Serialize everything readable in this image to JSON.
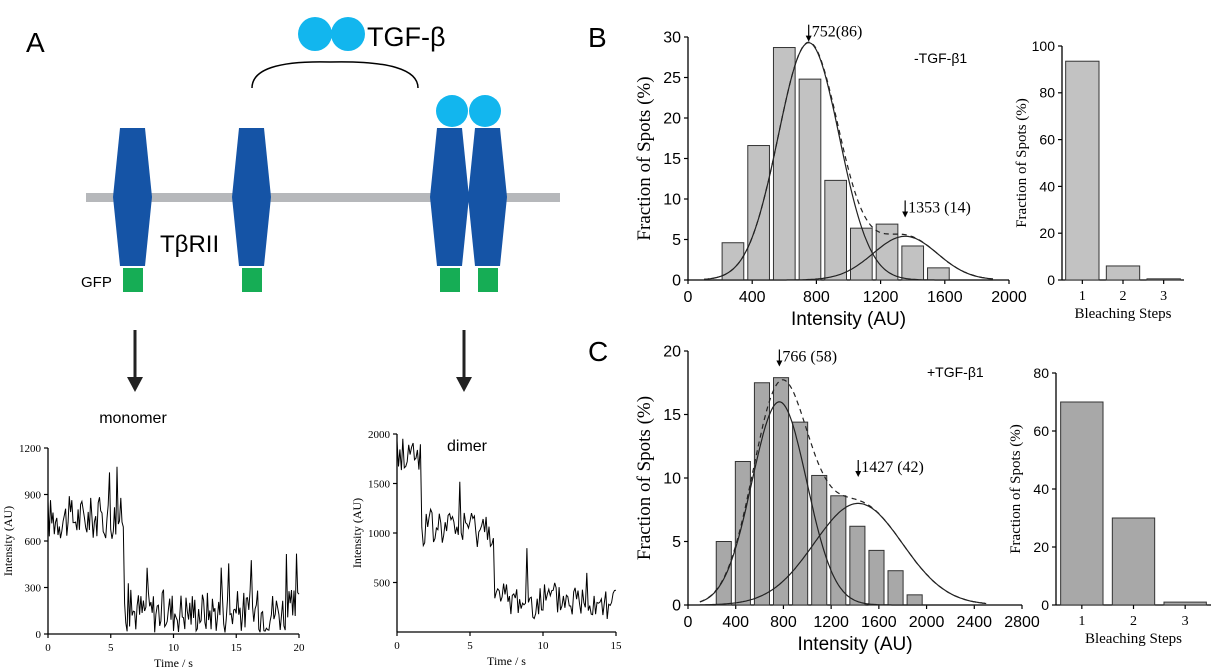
{
  "diagram": {
    "panel_label": "A",
    "ligand_label": "TGF-β",
    "receptor_label": "TβRII",
    "gfp_label": "GFP",
    "monomer_label": "monomer",
    "dimer_label": "dimer",
    "colors": {
      "ligand": "#12b6ee",
      "receptor": "#1554a6",
      "gfp": "#16ad55",
      "membrane": "#b6b8bb"
    }
  },
  "chart_data": [
    {
      "id": "trace_monomer",
      "type": "line",
      "xlabel": "Time / s",
      "ylabel": "Intensity (AU)",
      "xlim": [
        0,
        20
      ],
      "ylim": [
        0,
        1200
      ],
      "x_ticks": [
        0,
        5,
        10,
        15,
        20
      ],
      "y_ticks": [
        0,
        300,
        600,
        900,
        1200
      ],
      "step_time": 6,
      "levels": [
        [
          0,
          6,
          750
        ],
        [
          6,
          20,
          150
        ]
      ]
    },
    {
      "id": "trace_dimer",
      "type": "line",
      "xlabel": "Time / s",
      "ylabel": "Intensity (AU)",
      "xlim": [
        0,
        15
      ],
      "ylim": [
        0,
        2000
      ],
      "x_ticks": [
        0,
        5,
        10,
        15
      ],
      "y_ticks": [
        500,
        1000,
        1500,
        2000
      ],
      "levels": [
        [
          0,
          1.7,
          1800
        ],
        [
          1.7,
          6.6,
          1050
        ],
        [
          6.6,
          15,
          320
        ]
      ]
    },
    {
      "id": "hist_B",
      "panel_label": "B",
      "type": "bar",
      "condition_label": "-TGF-β1",
      "xlabel": "Intensity (AU)",
      "ylabel": "Fraction of Spots (%)",
      "xlim": [
        0,
        2000
      ],
      "ylim": [
        0,
        30
      ],
      "x_ticks": [
        0,
        400,
        800,
        1200,
        1600,
        2000
      ],
      "y_ticks": [
        0,
        5,
        10,
        15,
        20,
        25,
        30
      ],
      "bin_width": 160,
      "bin_centers": [
        280,
        440,
        600,
        760,
        920,
        1080,
        1240,
        1400,
        1560,
        1720
      ],
      "values": [
        4.6,
        16.6,
        28.7,
        24.8,
        12.3,
        6.4,
        6.9,
        4.2,
        1.5,
        0
      ],
      "gaussians": [
        {
          "mean": 752,
          "sigma": 190,
          "peak": 29.3
        },
        {
          "mean": 1353,
          "sigma": 200,
          "peak": 5.4
        }
      ],
      "annotations": [
        {
          "label": "752(86)",
          "x": 752,
          "y": 29.3
        },
        {
          "label": "1353 (14)",
          "x": 1353,
          "y": 7.6
        }
      ]
    },
    {
      "id": "steps_B",
      "type": "bar",
      "xlabel": "Bleaching Steps",
      "ylabel": "Fraction of Spots (%)",
      "ylim": [
        0,
        100
      ],
      "y_ticks": [
        0,
        20,
        40,
        60,
        80,
        100
      ],
      "categories": [
        "1",
        "2",
        "3"
      ],
      "values": [
        93.5,
        6,
        0.5
      ]
    },
    {
      "id": "hist_C",
      "panel_label": "C",
      "type": "bar",
      "condition_label": "+TGF-β1",
      "xlabel": "Intensity (AU)",
      "ylabel": "Fraction of Spots (%)",
      "xlim": [
        0,
        2800
      ],
      "ylim": [
        0,
        20
      ],
      "x_ticks": [
        0,
        400,
        800,
        1200,
        1600,
        2000,
        2400,
        2800
      ],
      "y_ticks": [
        0,
        5,
        10,
        15,
        20
      ],
      "bin_width": 160,
      "bin_centers": [
        300,
        460,
        620,
        780,
        940,
        1100,
        1260,
        1420,
        1580,
        1740,
        1900,
        2060,
        2220
      ],
      "values": [
        5.0,
        11.3,
        17.5,
        17.9,
        14.4,
        10.2,
        8.6,
        6.2,
        4.3,
        2.7,
        0.8,
        0,
        0
      ],
      "gaussians": [
        {
          "mean": 766,
          "sigma": 230,
          "peak": 16.0
        },
        {
          "mean": 1427,
          "sigma": 370,
          "peak": 8.0
        }
      ],
      "annotations": [
        {
          "label": "766 (58)",
          "x": 766,
          "y": 18.7
        },
        {
          "label": "1427 (42)",
          "x": 1427,
          "y": 10.0
        }
      ]
    },
    {
      "id": "steps_C",
      "type": "bar",
      "xlabel": "Bleaching Steps",
      "ylabel": "Fraction of Spots (%)",
      "ylim": [
        0,
        80
      ],
      "y_ticks": [
        0,
        20,
        40,
        60,
        80
      ],
      "categories": [
        "1",
        "2",
        "3"
      ],
      "values": [
        70,
        30,
        1
      ]
    }
  ]
}
